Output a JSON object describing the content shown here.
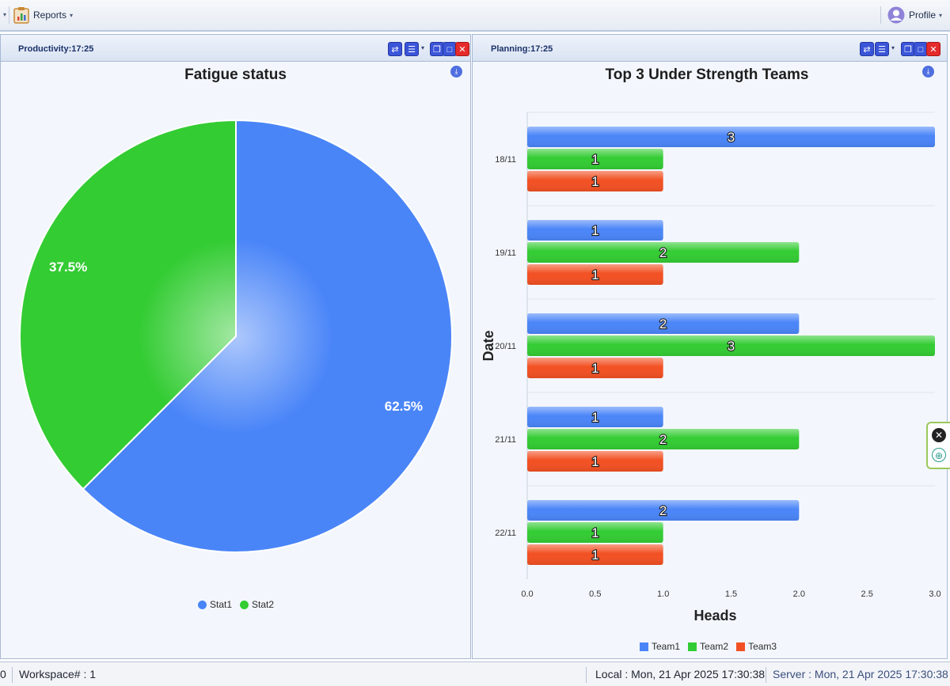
{
  "toolbar": {
    "reports_label": "Reports",
    "profile_label": "Profile"
  },
  "panels": {
    "left": {
      "title": "Productivity:17:25"
    },
    "right": {
      "title": "Planning:17:25"
    }
  },
  "chart_data": [
    {
      "type": "pie",
      "title": "Fatigue status",
      "categories": [
        "Stat1",
        "Stat2"
      ],
      "values": [
        62.5,
        37.5
      ],
      "labels": [
        "62.5%",
        "37.5%"
      ],
      "colors": [
        "#4a85f8",
        "#33cc33"
      ],
      "legend_position": "bottom-center"
    },
    {
      "type": "bar",
      "orientation": "horizontal",
      "title": "Top 3 Under Strength Teams",
      "xlabel": "Heads",
      "ylabel": "Date",
      "categories": [
        "18/11",
        "19/11",
        "20/11",
        "21/11",
        "22/11"
      ],
      "series": [
        {
          "name": "Team1",
          "color": "#4a85f8",
          "values": [
            3,
            1,
            2,
            1,
            2
          ]
        },
        {
          "name": "Team2",
          "color": "#33cc33",
          "values": [
            1,
            2,
            3,
            2,
            1
          ]
        },
        {
          "name": "Team3",
          "color": "#f25022",
          "values": [
            1,
            1,
            1,
            1,
            1
          ]
        }
      ],
      "xlim": [
        0,
        3
      ],
      "xticks": [
        "0.0",
        "0.5",
        "1.0",
        "1.5",
        "2.0",
        "2.5",
        "3.0"
      ],
      "grid": true,
      "legend_position": "bottom-center"
    }
  ],
  "status": {
    "left_value": "0",
    "workspace": "Workspace# : 1",
    "local_time": "Local : Mon, 21 Apr 2025 17:30:38",
    "server_time": "Server : Mon, 21 Apr 2025 17:30:38"
  }
}
